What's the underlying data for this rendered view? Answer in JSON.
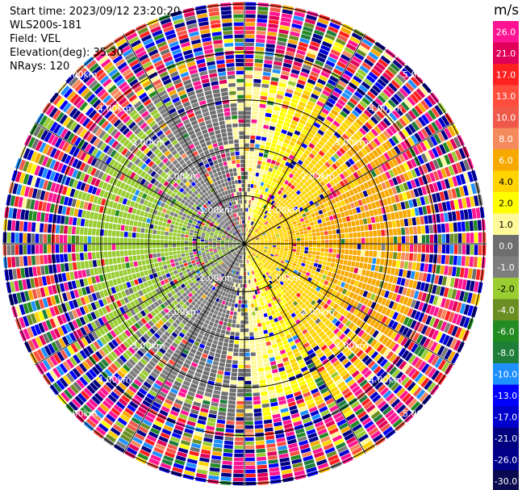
{
  "info": {
    "start_time": "Start time: 2023/09/12 23:20:20",
    "instrument": "WLS200s-181",
    "field": "Field: VEL",
    "elevation": "Elevation(deg): 35.30",
    "nrays": "NRays: 120"
  },
  "chart_data": {
    "type": "heatmap",
    "projection": "polar-ppi",
    "field": "VEL",
    "unit": "m/s",
    "n_rays": 120,
    "elevation_deg": 35.3,
    "range_rings_km": [
      1.0,
      2.0,
      3.0,
      4.0,
      5.0
    ],
    "ring_labels": [
      "1.00km",
      "2.00km",
      "3.00km",
      "4.00km",
      "5.00km"
    ],
    "grid": true,
    "colorbar": {
      "placement": "right",
      "unit_label": "m/s",
      "tick_labels": [
        "26.0",
        "21.0",
        "17.0",
        "13.0",
        "10.0",
        "8.0",
        "6.0",
        "4.0",
        "2.0",
        "1.0",
        "0.0",
        "-1.0",
        "-2.0",
        "-4.0",
        "-6.0",
        "-8.0",
        "-10.0",
        "-13.0",
        "-17.0",
        "-21.0",
        "-26.0",
        "-30.0"
      ],
      "colors": [
        "#ff1493",
        "#e0005a",
        "#ff2020",
        "#ff4c3c",
        "#f0584a",
        "#f58a5c",
        "#f7a900",
        "#ffd400",
        "#ffff00",
        "#fff99a",
        "#6e6e6e",
        "#7d7d7d",
        "#9acd32",
        "#6b8e23",
        "#228b22",
        "#1f7f3a",
        "#1e90ff",
        "#0000ff",
        "#0000cd",
        "#000080",
        "#00008b",
        "#0a0a50"
      ]
    },
    "velocity_pattern": {
      "near_range_km": 3.3,
      "positive_side_bearing_deg": 90,
      "positive_max_ms": 5.5,
      "negative_max_ms": -3.0,
      "far_range_state": "noisy"
    }
  }
}
